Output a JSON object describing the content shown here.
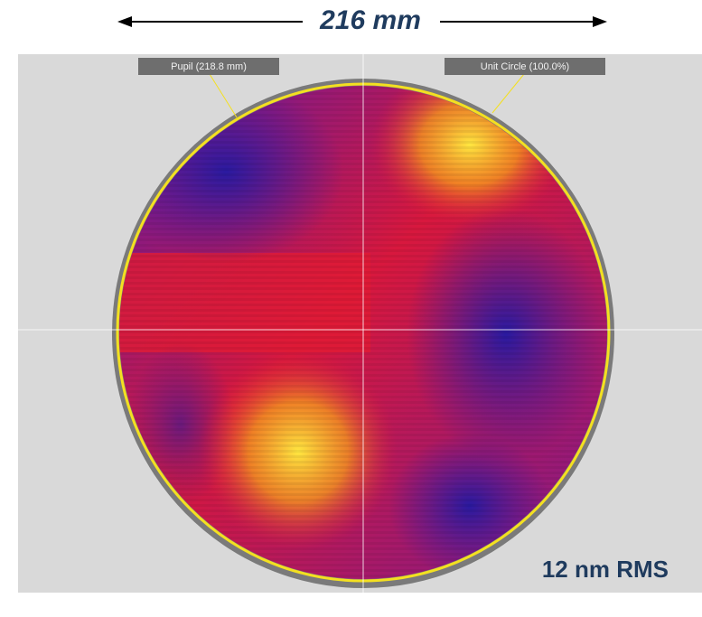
{
  "header": {
    "dimension": "216 mm"
  },
  "map": {
    "pupil_label": "Pupil (218.8 mm)",
    "unit_circle_label": "Unit Circle (100.0%)"
  },
  "footer": {
    "rms": "12 nm RMS"
  }
}
